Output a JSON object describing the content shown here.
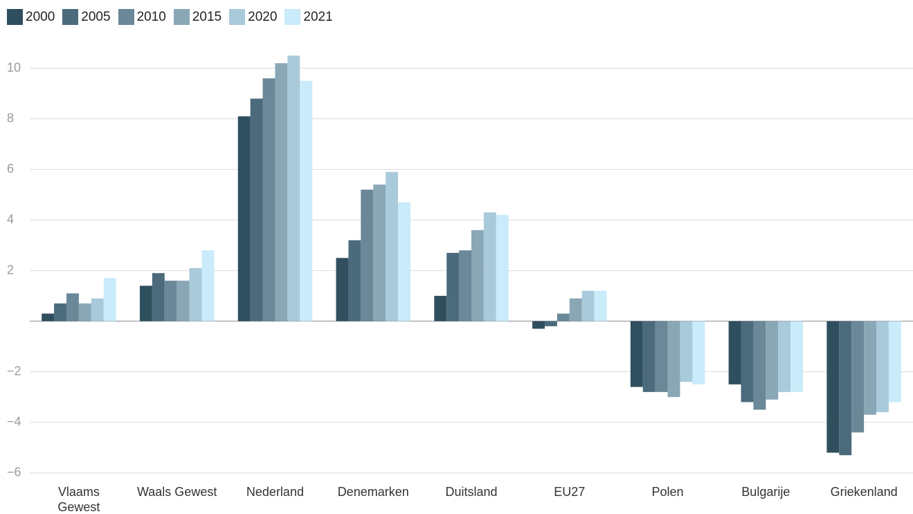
{
  "chart_data": {
    "type": "bar",
    "categories": [
      "Vlaams Gewest",
      "Waals Gewest",
      "Nederland",
      "Denemarken",
      "Duitsland",
      "EU27",
      "Polen",
      "Bulgarije",
      "Griekenland"
    ],
    "series": [
      {
        "name": "2000",
        "color": "#2f4f5e",
        "values": [
          0.3,
          1.4,
          8.1,
          2.5,
          1.0,
          -0.3,
          -2.6,
          -2.5,
          -5.2
        ]
      },
      {
        "name": "2005",
        "color": "#4b6b7c",
        "values": [
          0.7,
          1.9,
          8.8,
          3.2,
          2.7,
          -0.2,
          -2.8,
          -3.2,
          -5.3
        ]
      },
      {
        "name": "2010",
        "color": "#6a8898",
        "values": [
          1.1,
          1.6,
          9.6,
          5.2,
          2.8,
          0.3,
          -2.8,
          -3.5,
          -4.4
        ]
      },
      {
        "name": "2015",
        "color": "#8aa7b6",
        "values": [
          0.7,
          1.6,
          10.2,
          5.4,
          3.6,
          0.9,
          -3.0,
          -3.1,
          -3.7
        ]
      },
      {
        "name": "2020",
        "color": "#a9cadb",
        "values": [
          0.9,
          2.1,
          10.5,
          5.9,
          4.3,
          1.2,
          -2.4,
          -2.8,
          -3.6
        ]
      },
      {
        "name": "2021",
        "color": "#c9ebfa",
        "values": [
          1.7,
          2.8,
          9.5,
          4.7,
          4.2,
          1.2,
          -2.5,
          -2.8,
          -3.2
        ]
      }
    ],
    "ylim": [
      -6.2,
      11
    ],
    "yticks": [
      {
        "value": -6,
        "label": "−6"
      },
      {
        "value": -4,
        "label": "−4"
      },
      {
        "value": -2,
        "label": "−2"
      },
      2,
      4,
      6,
      8,
      10
    ],
    "grid": true,
    "legend": "top-left"
  }
}
